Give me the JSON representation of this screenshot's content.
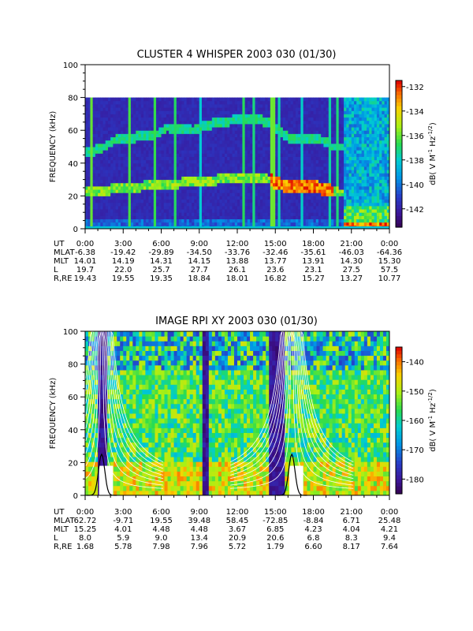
{
  "chart_data": [
    {
      "type": "heatmap",
      "title": "CLUSTER 4 WHISPER 2003 030 (01/30)",
      "ylabel": "FREQUENCY (kHz)",
      "ylim": [
        0,
        100
      ],
      "yticks": [
        "0",
        "20",
        "40",
        "60",
        "80",
        "100"
      ],
      "data_ceiling_khz": 80,
      "xticks": [
        "0:00",
        "3:00",
        "6:00",
        "9:00",
        "12:00",
        "15:00",
        "18:00",
        "21:00",
        "0:00"
      ],
      "colorbar": {
        "label": "dB( V M⁻¹ Hz⁻¹ᐟ²)",
        "label_parts": [
          "dB( V M",
          "-1",
          " Hz",
          "-1/2",
          ")"
        ],
        "range": [
          -143.5,
          -131.5
        ],
        "ticks": [
          "-132",
          "-134",
          "-136",
          "-138",
          "-140",
          "-142"
        ]
      },
      "ephemeris": {
        "labels": [
          "UT",
          "MLAT",
          "MLT",
          "L",
          "R,RE"
        ],
        "rows": [
          [
            "0:00",
            "3:00",
            "6:00",
            "9:00",
            "12:00",
            "15:00",
            "18:00",
            "21:00",
            "0:00"
          ],
          [
            "-6.38",
            "-19.42",
            "-29.89",
            "-34.50",
            "-33.76",
            "-32.46",
            "-35.61",
            "-46.03",
            "-64.36"
          ],
          [
            "14.01",
            "14.19",
            "14.31",
            "14.15",
            "13.88",
            "13.77",
            "13.91",
            "14.30",
            "15.30"
          ],
          [
            "19.7",
            "22.0",
            "25.7",
            "27.7",
            "26.1",
            "23.6",
            "23.1",
            "27.5",
            "57.5"
          ],
          [
            "19.43",
            "19.55",
            "19.35",
            "18.84",
            "18.01",
            "16.82",
            "15.27",
            "13.27",
            "10.77"
          ]
        ]
      },
      "bands": [
        {
          "name": "upper",
          "points": [
            [
              0,
              46
            ],
            [
              1.5,
              50
            ],
            [
              2.5,
              55
            ],
            [
              5.5,
              57
            ],
            [
              6.5,
              62
            ],
            [
              8.5,
              60
            ],
            [
              10,
              64
            ],
            [
              13,
              68
            ],
            [
              14.5,
              65
            ],
            [
              16,
              56
            ],
            [
              18.5,
              55
            ],
            [
              19.5,
              50
            ],
            [
              21,
              50
            ]
          ]
        },
        {
          "name": "lower",
          "points": [
            [
              0,
              24
            ],
            [
              1,
              23
            ],
            [
              3,
              25
            ],
            [
              6,
              27
            ],
            [
              9,
              29
            ],
            [
              13,
              32
            ],
            [
              14.5,
              30
            ],
            [
              15,
              28
            ],
            [
              16,
              26
            ],
            [
              18.5,
              25
            ],
            [
              20,
              22
            ]
          ]
        }
      ]
    },
    {
      "type": "heatmap",
      "title": "IMAGE RPI XY 2003 030 (01/30)",
      "ylabel": "FREQUENCY (kHz)",
      "ylim": [
        0,
        100
      ],
      "yticks": [
        "0",
        "20",
        "40",
        "60",
        "80",
        "100"
      ],
      "xticks": [
        "0:00",
        "3:00",
        "6:00",
        "9:00",
        "12:00",
        "15:00",
        "18:00",
        "21:00",
        "0:00"
      ],
      "colorbar": {
        "label": "dB( V M⁻¹ Hz⁻¹ᐟ²)",
        "label_parts": [
          "dB( V M",
          "-1",
          " Hz",
          "-1/2",
          ")"
        ],
        "range": [
          -185,
          -135
        ],
        "ticks": [
          "-140",
          "-150",
          "-160",
          "-170",
          "-180"
        ]
      },
      "ephemeris": {
        "labels": [
          "UT",
          "MLAT",
          "MLT",
          "L",
          "R,RE"
        ],
        "rows": [
          [
            "0:00",
            "3:00",
            "6:00",
            "9:00",
            "12:00",
            "15:00",
            "18:00",
            "21:00",
            "0:00"
          ],
          [
            "62.72",
            "-9.71",
            "19.55",
            "39.48",
            "58.45",
            "-72.85",
            "-8.84",
            "6.71",
            "25.48"
          ],
          [
            "15.25",
            "4.01",
            "4.48",
            "4.48",
            "3.67",
            "6.85",
            "4.23",
            "4.04",
            "4.21"
          ],
          [
            "8.0",
            "5.9",
            "9.0",
            "13.4",
            "20.9",
            "20.6",
            "6.8",
            "8.3",
            "9.4"
          ],
          [
            "1.68",
            "5.78",
            "7.98",
            "7.96",
            "5.72",
            "1.79",
            "6.60",
            "8.17",
            "7.64"
          ]
        ]
      },
      "perigee_hours": [
        1.3,
        16.3
      ]
    }
  ]
}
